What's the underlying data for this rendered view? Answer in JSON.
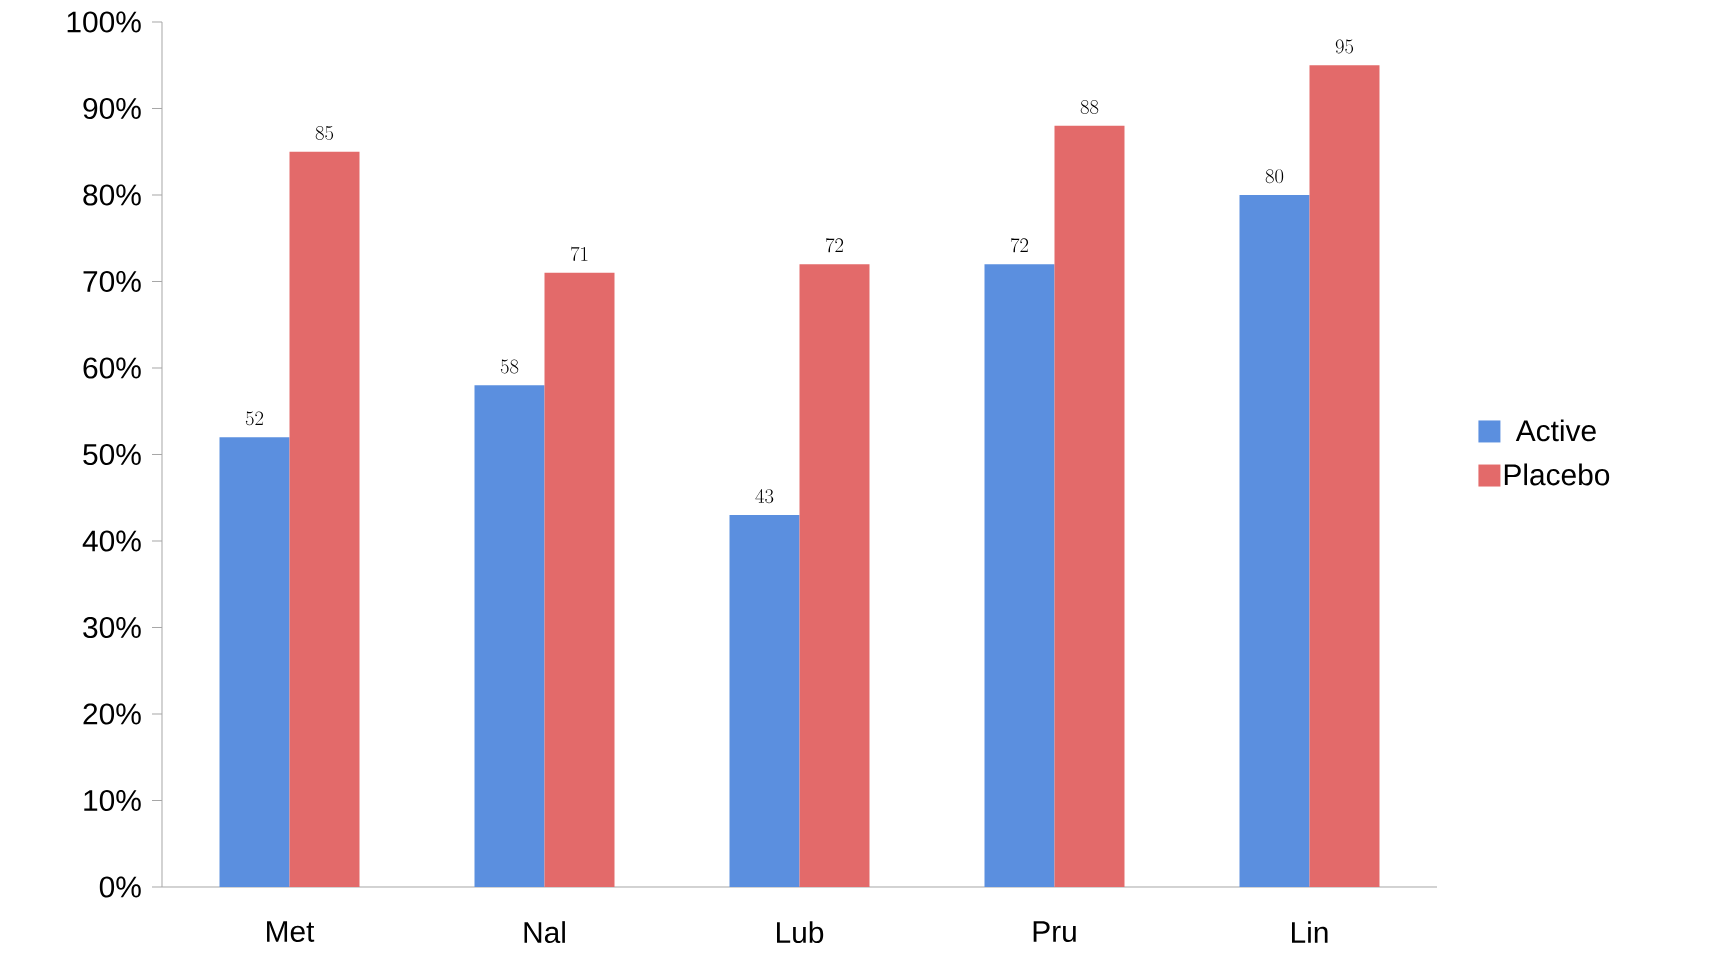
{
  "chart_data": {
    "type": "bar",
    "categories": [
      "Met",
      "Nal",
      "Lub",
      "Pru",
      "Lin"
    ],
    "series": [
      {
        "name": "Active",
        "color": "#5b8fdf",
        "values": [
          52,
          58,
          43,
          72,
          80
        ]
      },
      {
        "name": "Placebo",
        "color": "#e36a6a",
        "values": [
          85,
          71,
          72,
          88,
          95
        ]
      }
    ],
    "ylim": [
      0,
      100
    ],
    "yticks": [
      {
        "value": 0,
        "label": "0%"
      },
      {
        "value": 10,
        "label": "10%"
      },
      {
        "value": 20,
        "label": "20%"
      },
      {
        "value": 30,
        "label": "30%"
      },
      {
        "value": 40,
        "label": "40%"
      },
      {
        "value": 50,
        "label": "50%"
      },
      {
        "value": 60,
        "label": "60%"
      },
      {
        "value": 70,
        "label": "70%"
      },
      {
        "value": 80,
        "label": "80%"
      },
      {
        "value": 90,
        "label": "90%"
      },
      {
        "value": 100,
        "label": "100%"
      }
    ],
    "data_labels": true,
    "grid": false,
    "legend": "right"
  }
}
